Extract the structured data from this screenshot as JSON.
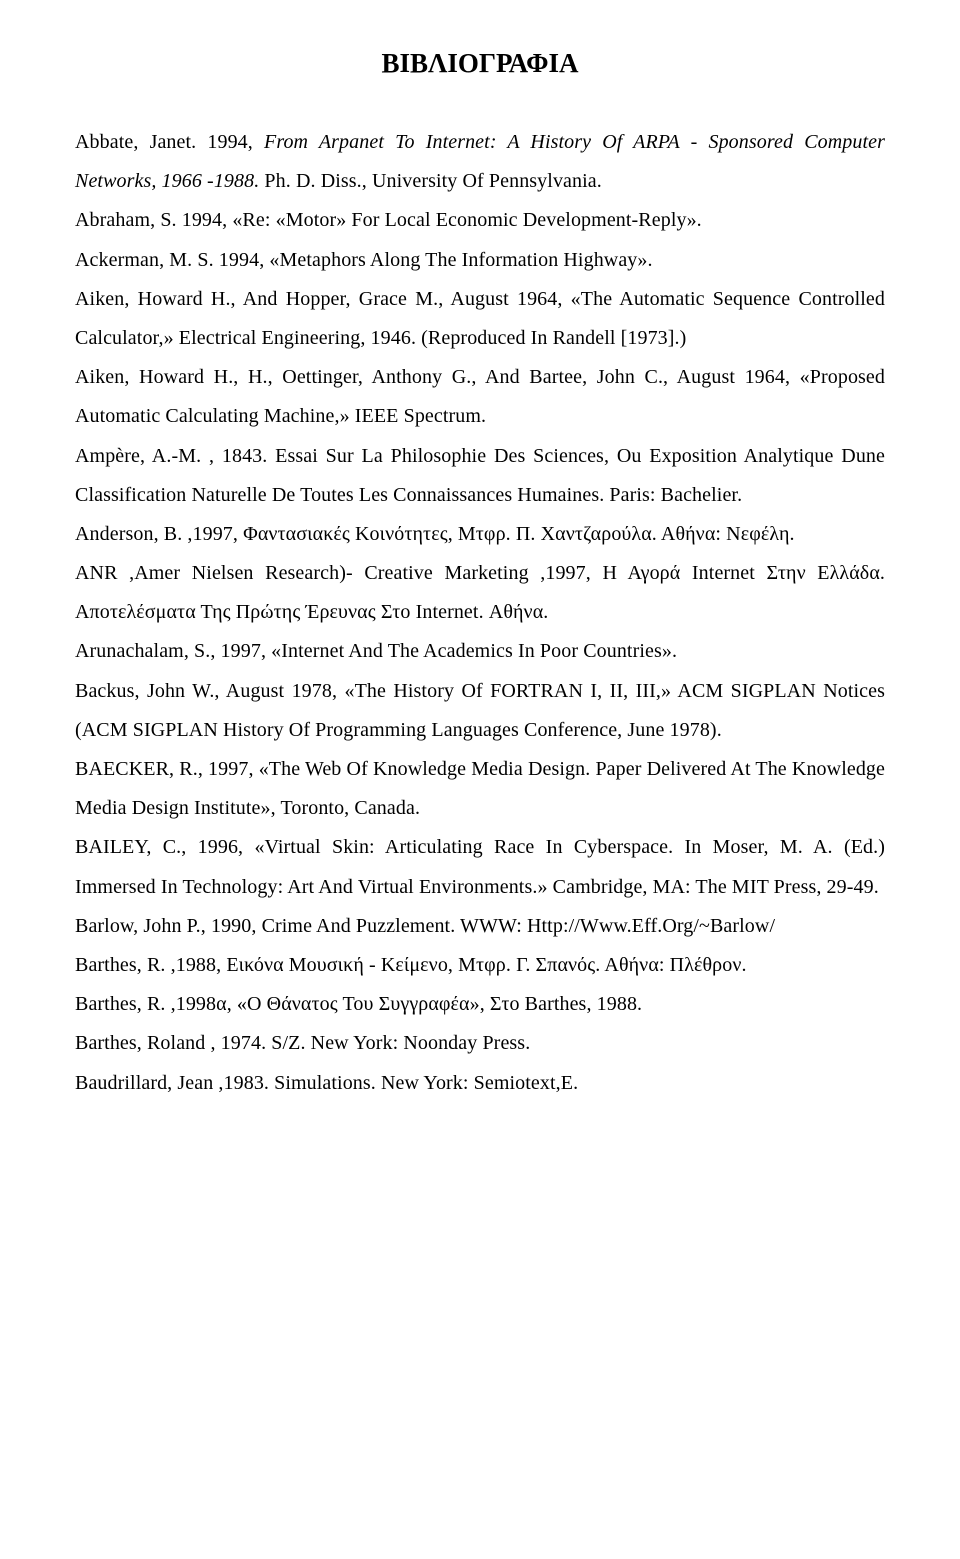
{
  "title_text": "ΒΙΒΛΙΟΓΡΑΦΙΑ",
  "title_fontsize": 27,
  "body_fontsize": 20,
  "line_height": 1.96,
  "text_align": "justify",
  "text_color": "#000000",
  "background_color": "#ffffff",
  "font_family": "Times New Roman",
  "entries": [
    {
      "segments": [
        {
          "t": "Abbate, Janet. 1994, "
        },
        {
          "t": "From Arpanet To Internet: A History Of ARPA - Sponsored Computer Networks, 1966 -1988.",
          "italic": true
        },
        {
          "t": " Ph. D. Diss., University Of Pennsylvania."
        }
      ]
    },
    {
      "segments": [
        {
          "t": "Abraham, S. 1994, «Re: «Motor» For Local Economic Development-Reply»."
        }
      ]
    },
    {
      "segments": [
        {
          "t": "Ackerman, M. S. 1994, «Metaphors Along The Information Highway»."
        }
      ]
    },
    {
      "segments": [
        {
          "t": "Aiken, Howard H., And Hopper, Grace M., August 1964, «The Automatic Sequence Controlled Calculator,» Electrical Engineering, 1946. (Reproduced In Randell [1973].)"
        }
      ]
    },
    {
      "segments": [
        {
          "t": "Aiken, Howard H., H., Oettinger, Anthony G., And Bartee, John C., August 1964, «Proposed Automatic Calculating Machine,» IEEE Spectrum."
        }
      ]
    },
    {
      "segments": [
        {
          "t": "Ampère, A.-M. , 1843. Essai Sur La Philosophie Des Sciences, Ou Exposition Analytique Dune Classification Naturelle De Toutes Les Connaissances Humaines. Paris: Bachelier."
        }
      ]
    },
    {
      "segments": [
        {
          "t": "Anderson, B. ,1997, Φαντασιακές Κοινότητες, Μτφρ. Π. Χαντζαρούλα. Αθήνα: Νεφέλη."
        }
      ]
    },
    {
      "segments": [
        {
          "t": "ANR ,Amer Nielsen Research)- Creative Marketing ,1997, Η Αγορά Internet Στην Ελλάδα.  Αποτελέσματα Της Πρώτης Έρευνας Στο Internet.  Αθήνα."
        }
      ]
    },
    {
      "segments": [
        {
          "t": "Arunachalam, S., 1997, «Internet And The Academics In Poor Countries»."
        }
      ]
    },
    {
      "segments": [
        {
          "t": "Backus, John W., August 1978, «The History Of FORTRAN I, II, III,» ACM SIGPLAN Notices (ACM SIGPLAN History Of Programming Languages Conference, June 1978)."
        }
      ]
    },
    {
      "segments": [
        {
          "t": "BAECKER, R., 1997, «The Web Of Knowledge Media Design. Paper Delivered At The Knowledge Media Design Institute», Toronto, Canada."
        }
      ]
    },
    {
      "segments": [
        {
          "t": "BAILEY, C., 1996, «Virtual Skin: Articulating Race In Cyberspace. In Moser, M. A. (Ed.) Immersed In Technology: Art And Virtual Environments.» Cambridge, MA: The MIT Press, 29-49."
        }
      ]
    },
    {
      "segments": [
        {
          "t": "Barlow, John P., 1990, Crime And Puzzlement. WWW: Http://Www.Eff.Org/~Barlow/"
        }
      ]
    },
    {
      "segments": [
        {
          "t": "Barthes, R. ,1988, Εικόνα   Μουσική - Κείμενο, Μτφρ. Γ. Σπανός. Αθήνα: Πλέθρον."
        }
      ]
    },
    {
      "segments": [
        {
          "t": "Barthes, R. ,1998α, «Ο Θάνατος Του Συγγραφέα», Στο Barthes, 1988."
        }
      ]
    },
    {
      "segments": [
        {
          "t": "Barthes, Roland , 1974. S/Z. New York: Noonday Press."
        }
      ]
    },
    {
      "segments": [
        {
          "t": "Baudrillard, Jean ,1983. Simulations. New York: Semiotext,E."
        }
      ]
    }
  ]
}
